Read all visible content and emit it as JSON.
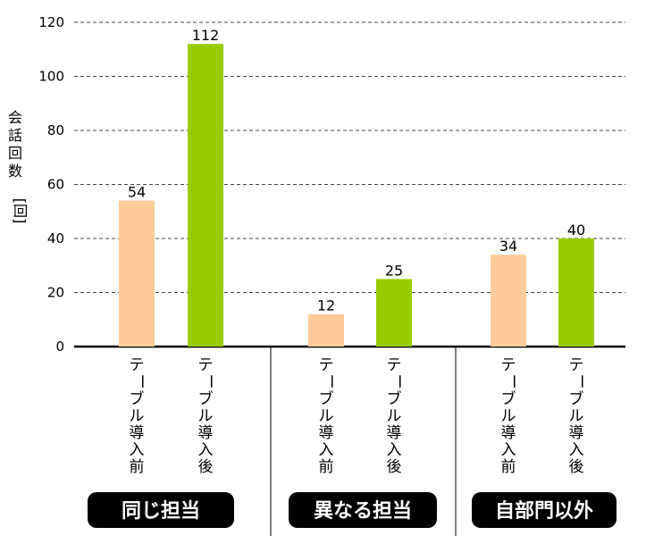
{
  "chart_data": {
    "type": "bar",
    "ylabel_chars": [
      "会",
      "話",
      "回",
      "数"
    ],
    "yunit": "[回]",
    "ylim": [
      0,
      120
    ],
    "yticks": [
      0,
      20,
      40,
      60,
      80,
      100,
      120
    ],
    "grid": true,
    "groups": [
      {
        "label": "同じ担当",
        "bars": [
          {
            "category": "テーブル導入前",
            "value": 54
          },
          {
            "category": "テーブル導入後",
            "value": 112
          }
        ]
      },
      {
        "label": "異なる担当",
        "bars": [
          {
            "category": "テーブル導入前",
            "value": 12
          },
          {
            "category": "テーブル導入後",
            "value": 25
          }
        ]
      },
      {
        "label": "自部門以外",
        "bars": [
          {
            "category": "テーブル導入前",
            "value": 34
          },
          {
            "category": "テーブル導入後",
            "value": 40
          }
        ]
      }
    ],
    "colors": {
      "before": "#FFCC99",
      "after": "#99CC00"
    }
  }
}
